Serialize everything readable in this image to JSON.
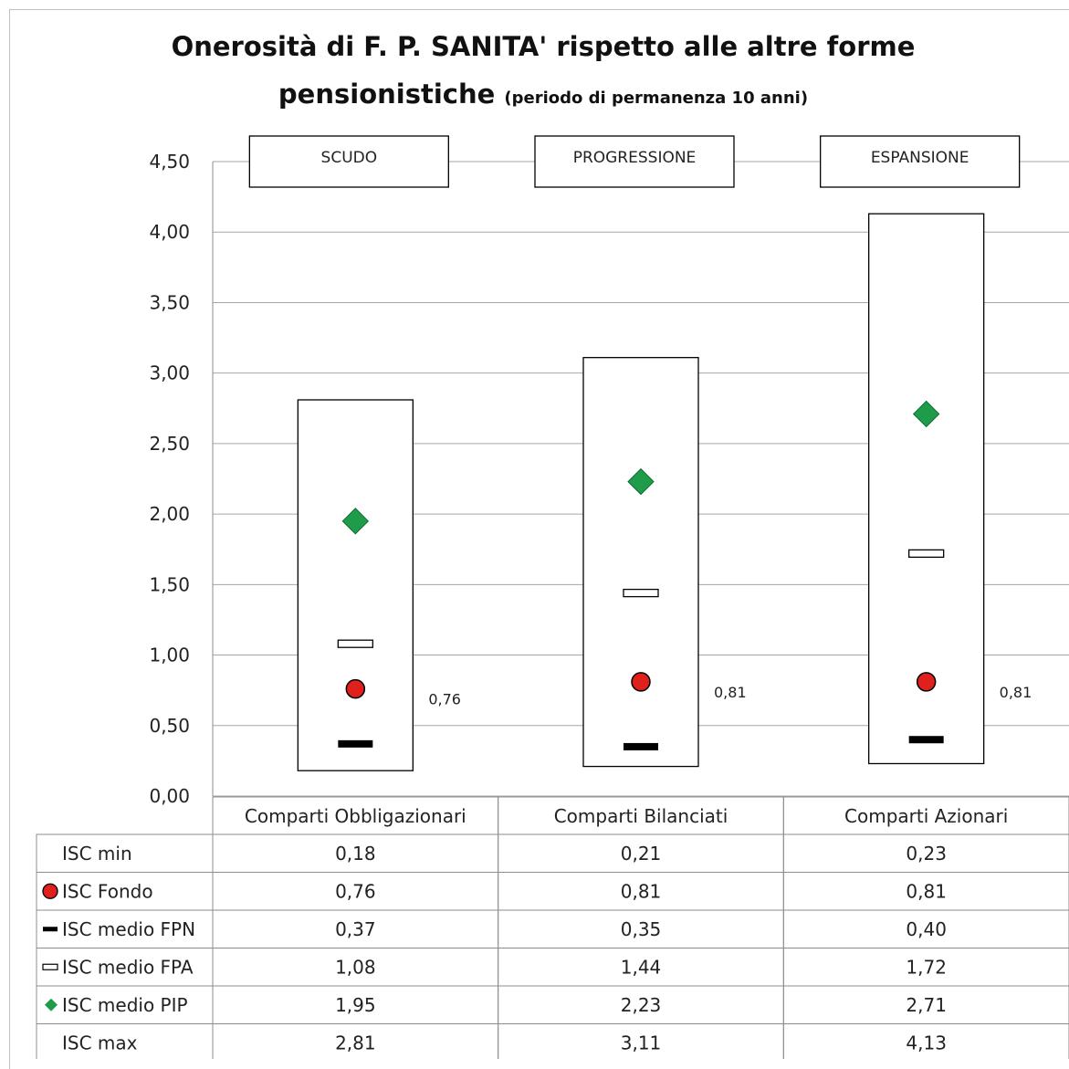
{
  "chart_data": {
    "type": "box",
    "title": "Onerosità di F. P. SANITA' rispetto alle altre forme",
    "title_line2": "pensionistiche",
    "subtitle": "(periodo di permanenza 10 anni)",
    "ylim": [
      0,
      4.5
    ],
    "yticks": [
      "0,00",
      "0,50",
      "1,00",
      "1,50",
      "2,00",
      "2,50",
      "3,00",
      "3,50",
      "4,00",
      "4,50"
    ],
    "grid": true,
    "categories": [
      "Comparti Obbligazionari",
      "Comparti Bilanciati",
      "Comparti Azionari"
    ],
    "box_labels": [
      "SCUDO",
      "PROGRESSIONE",
      "ESPANSIONE"
    ],
    "point_labels": [
      "0,76",
      "0,81",
      "0,81"
    ],
    "series": [
      {
        "name": "ISC min",
        "marker": "none",
        "values": [
          0.18,
          0.21,
          0.23
        ],
        "text": [
          "0,18",
          "0,21",
          "0,23"
        ]
      },
      {
        "name": "ISC Fondo",
        "marker": "circle",
        "color": "#e0201c",
        "values": [
          0.76,
          0.81,
          0.81
        ],
        "text": [
          "0,76",
          "0,81",
          "0,81"
        ]
      },
      {
        "name": "ISC medio FPN",
        "marker": "black-dash",
        "color": "#000000",
        "values": [
          0.37,
          0.35,
          0.4
        ],
        "text": [
          "0,37",
          "0,35",
          "0,40"
        ]
      },
      {
        "name": "ISC medio FPA",
        "marker": "white-dash",
        "color": "#ffffff",
        "values": [
          1.08,
          1.44,
          1.72
        ],
        "text": [
          "1,08",
          "1,44",
          "1,72"
        ]
      },
      {
        "name": "ISC medio PIP",
        "marker": "diamond",
        "color": "#1f9c4a",
        "values": [
          1.95,
          2.23,
          2.71
        ],
        "text": [
          "1,95",
          "2,23",
          "2,71"
        ]
      },
      {
        "name": "ISC max",
        "marker": "none",
        "values": [
          2.81,
          3.11,
          4.13
        ],
        "text": [
          "2,81",
          "3,11",
          "4,13"
        ]
      }
    ]
  }
}
